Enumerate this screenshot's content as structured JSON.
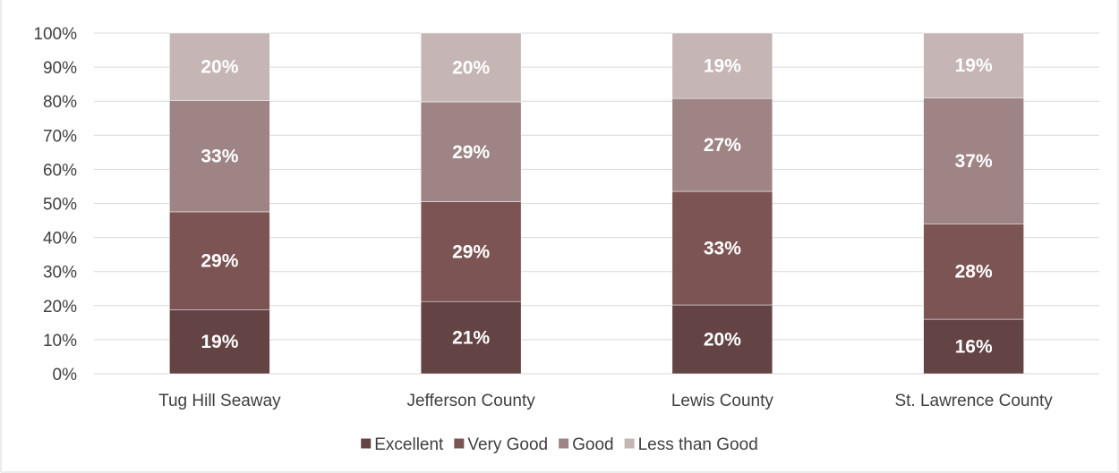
{
  "chart_data": {
    "type": "bar",
    "stacked": true,
    "percent_stacked": true,
    "categories": [
      "Tug Hill Seaway",
      "Jefferson County",
      "Lewis County",
      "St. Lawrence County"
    ],
    "series": [
      {
        "name": "Excellent",
        "values": [
          19,
          21,
          20,
          16
        ],
        "labels": [
          "19%",
          "21%",
          "20%",
          "16%"
        ],
        "color": "#634343"
      },
      {
        "name": "Very Good",
        "values": [
          29,
          29,
          33,
          28
        ],
        "labels": [
          "29%",
          "29%",
          "33%",
          "28%"
        ],
        "color": "#7d5454"
      },
      {
        "name": "Good",
        "values": [
          33,
          29,
          27,
          37
        ],
        "labels": [
          "33%",
          "29%",
          "27%",
          "37%"
        ],
        "color": "#9e8484"
      },
      {
        "name": "Less than Good",
        "values": [
          20,
          20,
          19,
          19
        ],
        "labels": [
          "20%",
          "20%",
          "19%",
          "19%"
        ],
        "color": "#c6b5b5"
      }
    ],
    "ylim": [
      0,
      100
    ],
    "y_ticks": [
      "0%",
      "10%",
      "20%",
      "30%",
      "40%",
      "50%",
      "60%",
      "70%",
      "80%",
      "90%",
      "100%"
    ],
    "grid": true,
    "legend_position": "bottom",
    "colors": {
      "grid": "#d9d9d9",
      "label_text": "#ffffff",
      "axis_text": "#404040",
      "frame": "#d9d9d9"
    }
  }
}
